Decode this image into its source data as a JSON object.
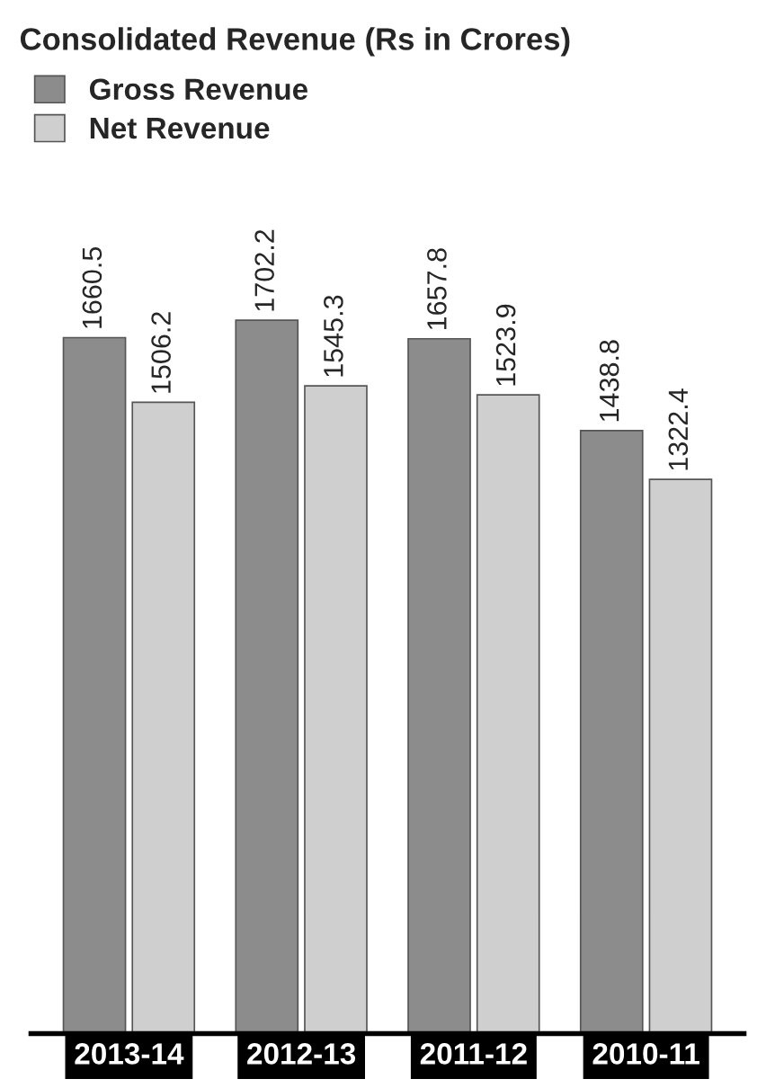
{
  "chart_data": {
    "type": "bar",
    "title": "Consolidated Revenue (Rs in Crores)",
    "categories": [
      "2013-14",
      "2012-13",
      "2011-12",
      "2010-11"
    ],
    "series": [
      {
        "name": "Gross Revenue",
        "color": "#8c8c8c",
        "values": [
          1660.5,
          1702.2,
          1657.8,
          1438.8
        ]
      },
      {
        "name": "Net Revenue",
        "color": "#cfcfcf",
        "values": [
          1506.2,
          1545.3,
          1523.9,
          1322.4
        ]
      }
    ],
    "data_labels": true,
    "legend": "top left",
    "grid": false
  }
}
